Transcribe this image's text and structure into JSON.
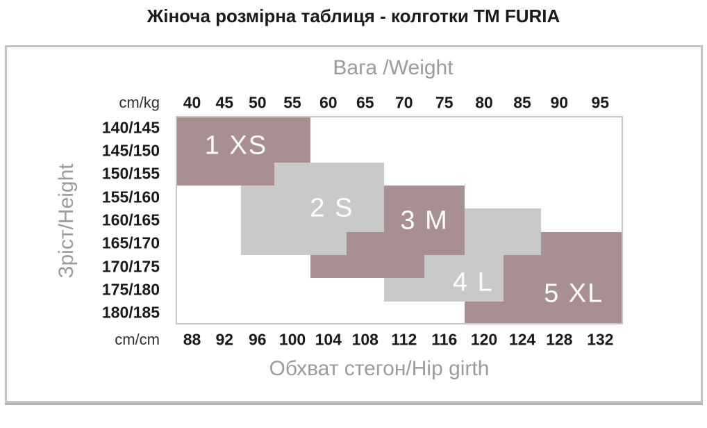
{
  "title": "Жіноча розмірна таблиця - колготки ТМ FURIA",
  "axes": {
    "top_title": "Вага /Weight",
    "left_title": "Зріст/Height",
    "bottom_title": "Обхват стегон/Hip girth",
    "top_unit": "cm/kg",
    "bottom_unit": "cm/cm"
  },
  "chart_data": {
    "type": "heatmap",
    "title": "Жіноча розмірна таблиця - колготки ТМ FURIA",
    "x_top_label": "Вага /Weight",
    "x_bottom_label": "Обхват стегон/Hip girth",
    "y_label": "Зріст/Height",
    "weights_kg": [
      40,
      45,
      50,
      55,
      60,
      65,
      70,
      75,
      80,
      85,
      90,
      95
    ],
    "hip_girth_cm": [
      88,
      92,
      96,
      100,
      104,
      108,
      112,
      116,
      120,
      124,
      128,
      132
    ],
    "heights_cm": [
      "140/145",
      "145/150",
      "150/155",
      "155/160",
      "160/165",
      "165/170",
      "170/175",
      "175/180",
      "180/185"
    ],
    "colors": {
      "rose": "#a88f92",
      "gray": "#c8c9c8",
      "label_text": "#ffffff",
      "axis_text": "#9b9b9b",
      "number_text": "#1a1a1a"
    },
    "sizes": [
      {
        "label": "1 XS",
        "color": "rose",
        "label_pos": {
          "fx": 0.135,
          "fy": 0.143
        },
        "regions": [
          {
            "rows": [
              0,
              1
            ],
            "cols": [
              0,
              3
            ]
          },
          {
            "rows": [
              2,
              2
            ],
            "cols": [
              0,
              2
            ]
          }
        ]
      },
      {
        "label": "2 S",
        "color": "gray",
        "label_pos": {
          "fx": 0.349,
          "fy": 0.443
        },
        "regions": [
          {
            "rows": [
              2,
              2
            ],
            "cols": [
              3,
              5
            ]
          },
          {
            "rows": [
              3,
              4
            ],
            "cols": [
              2,
              5
            ]
          },
          {
            "rows": [
              5,
              5
            ],
            "cols": [
              2,
              4
            ]
          }
        ]
      },
      {
        "label": "3 M",
        "color": "rose",
        "label_pos": {
          "fx": 0.556,
          "fy": 0.503
        },
        "regions": [
          {
            "rows": [
              3,
              4
            ],
            "cols": [
              6,
              7
            ]
          },
          {
            "rows": [
              5,
              5
            ],
            "cols": [
              5,
              7
            ]
          },
          {
            "rows": [
              6,
              6
            ],
            "cols": [
              4,
              6
            ]
          }
        ]
      },
      {
        "label": "4 L",
        "color": "gray",
        "label_pos": {
          "fx": 0.665,
          "fy": 0.8
        },
        "regions": [
          {
            "rows": [
              4,
              5
            ],
            "cols": [
              8,
              9
            ]
          },
          {
            "rows": [
              6,
              6
            ],
            "cols": [
              7,
              8
            ]
          },
          {
            "rows": [
              7,
              7
            ],
            "cols": [
              6,
              8
            ]
          }
        ]
      },
      {
        "label": "5 XL",
        "color": "rose",
        "label_pos": {
          "fx": 0.89,
          "fy": 0.853
        },
        "regions": [
          {
            "rows": [
              5,
              5
            ],
            "cols": [
              10,
              11
            ]
          },
          {
            "rows": [
              6,
              7
            ],
            "cols": [
              9,
              11
            ]
          },
          {
            "rows": [
              8,
              8
            ],
            "cols": [
              8,
              11
            ]
          }
        ]
      }
    ]
  }
}
